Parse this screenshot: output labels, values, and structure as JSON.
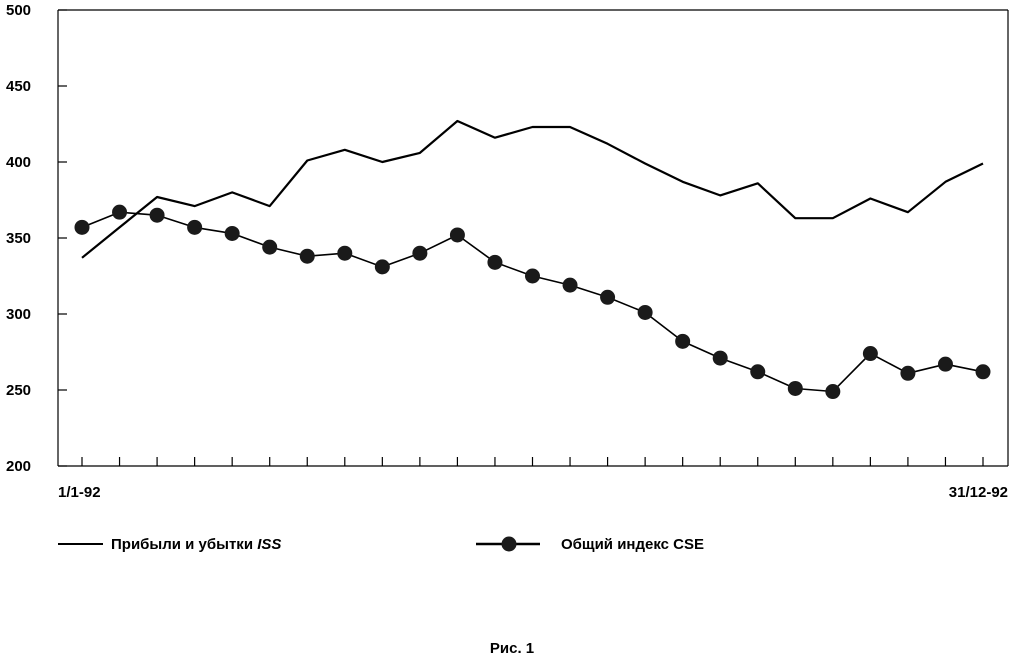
{
  "chart_data": {
    "type": "line",
    "ylim": [
      200,
      500
    ],
    "yticks": [
      "500",
      "450",
      "400",
      "350",
      "300",
      "250",
      "200"
    ],
    "x_start_label": "1/1-92",
    "x_end_label": "31/12-92",
    "grid": false,
    "legend_position": "bottom",
    "series": [
      {
        "name": "Прибыли и убытки ",
        "name_italic": "ISS",
        "marker": "none",
        "values": [
          337,
          357,
          377,
          371,
          380,
          371,
          401,
          408,
          400,
          406,
          427,
          416,
          423,
          423,
          412,
          399,
          387,
          378,
          386,
          363,
          363,
          376,
          367,
          387,
          399
        ]
      },
      {
        "name": "Общий индекс CSE",
        "marker": "circle",
        "values": [
          357,
          367,
          365,
          357,
          353,
          344,
          338,
          340,
          331,
          340,
          352,
          334,
          325,
          319,
          311,
          301,
          282,
          271,
          262,
          251,
          249,
          274,
          261,
          267,
          262
        ]
      }
    ],
    "caption": "Рис. 1"
  },
  "colors": {
    "line": "#000000",
    "background": "#ffffff"
  }
}
